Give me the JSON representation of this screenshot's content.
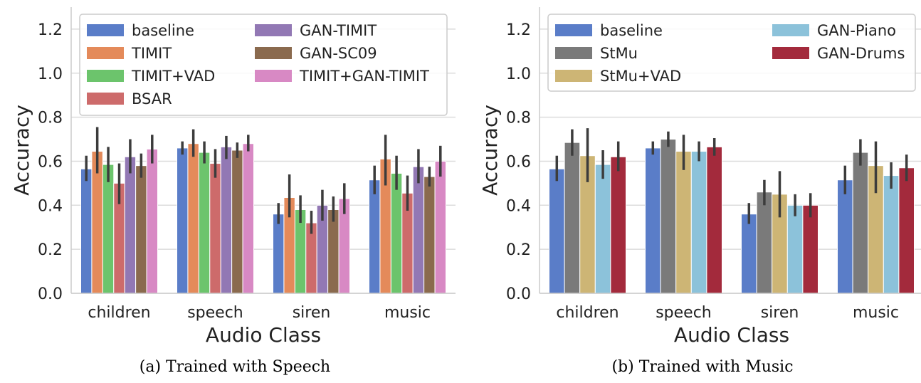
{
  "chart_data": [
    {
      "type": "bar",
      "caption": "(a) Trained with Speech",
      "xlabel": "Audio Class",
      "ylabel": "Accuracy",
      "ylim": [
        0,
        1.3
      ],
      "yticks": [
        "0.0",
        "0.2",
        "0.4",
        "0.6",
        "0.8",
        "1.0",
        "1.2"
      ],
      "grid": true,
      "legend_position": "top-left",
      "legend_columns": 2,
      "categories": [
        "children",
        "speech",
        "siren",
        "music"
      ],
      "series": [
        {
          "name": "baseline",
          "color": "#5A7DC8",
          "values": [
            0.565,
            0.66,
            0.36,
            0.515
          ],
          "err_low": [
            0.51,
            0.63,
            0.315,
            0.45
          ],
          "err_high": [
            0.625,
            0.69,
            0.41,
            0.58
          ]
        },
        {
          "name": "TIMIT",
          "color": "#E48A5A",
          "values": [
            0.645,
            0.68,
            0.435,
            0.61
          ],
          "err_low": [
            0.545,
            0.62,
            0.345,
            0.49
          ],
          "err_high": [
            0.755,
            0.745,
            0.54,
            0.72
          ]
        },
        {
          "name": "TIMIT+VAD",
          "color": "#6CC46C",
          "values": [
            0.585,
            0.64,
            0.38,
            0.545
          ],
          "err_low": [
            0.505,
            0.59,
            0.32,
            0.47
          ],
          "err_high": [
            0.665,
            0.69,
            0.445,
            0.625
          ]
        },
        {
          "name": "BSAR",
          "color": "#CD6B6B",
          "values": [
            0.5,
            0.59,
            0.32,
            0.455
          ],
          "err_low": [
            0.405,
            0.525,
            0.27,
            0.375
          ],
          "err_high": [
            0.59,
            0.655,
            0.375,
            0.535
          ]
        },
        {
          "name": "GAN-TIMIT",
          "color": "#9278B4",
          "values": [
            0.62,
            0.665,
            0.4,
            0.575
          ],
          "err_low": [
            0.545,
            0.61,
            0.33,
            0.5
          ],
          "err_high": [
            0.7,
            0.715,
            0.47,
            0.655
          ]
        },
        {
          "name": "GAN-SC09",
          "color": "#8A6A4E",
          "values": [
            0.58,
            0.65,
            0.38,
            0.53
          ],
          "err_low": [
            0.525,
            0.615,
            0.325,
            0.485
          ],
          "err_high": [
            0.635,
            0.685,
            0.44,
            0.575
          ]
        },
        {
          "name": "TIMIT+GAN-TIMIT",
          "color": "#D889C4",
          "values": [
            0.655,
            0.68,
            0.43,
            0.6
          ],
          "err_low": [
            0.59,
            0.645,
            0.36,
            0.53
          ],
          "err_high": [
            0.72,
            0.72,
            0.5,
            0.67
          ]
        }
      ]
    },
    {
      "type": "bar",
      "caption": "(b) Trained with Music",
      "xlabel": "Audio Class",
      "ylabel": "Accuracy",
      "ylim": [
        0,
        1.3
      ],
      "yticks": [
        "0.0",
        "0.2",
        "0.4",
        "0.6",
        "0.8",
        "1.0",
        "1.2"
      ],
      "grid": true,
      "legend_position": "top",
      "legend_columns": 2,
      "categories": [
        "children",
        "speech",
        "siren",
        "music"
      ],
      "series": [
        {
          "name": "baseline",
          "color": "#5A7DC8",
          "values": [
            0.565,
            0.66,
            0.36,
            0.515
          ],
          "err_low": [
            0.51,
            0.63,
            0.315,
            0.45
          ],
          "err_high": [
            0.625,
            0.69,
            0.41,
            0.58
          ]
        },
        {
          "name": "StMu",
          "color": "#7A7A7A",
          "values": [
            0.685,
            0.7,
            0.46,
            0.64
          ],
          "err_low": [
            0.625,
            0.665,
            0.4,
            0.58
          ],
          "err_high": [
            0.745,
            0.735,
            0.515,
            0.7
          ]
        },
        {
          "name": "StMu+VAD",
          "color": "#CDB575",
          "values": [
            0.625,
            0.645,
            0.45,
            0.58
          ],
          "err_low": [
            0.505,
            0.56,
            0.345,
            0.455
          ],
          "err_high": [
            0.75,
            0.72,
            0.555,
            0.69
          ]
        },
        {
          "name": "GAN-Piano",
          "color": "#8CC2DA",
          "values": [
            0.585,
            0.645,
            0.4,
            0.535
          ],
          "err_low": [
            0.52,
            0.6,
            0.35,
            0.475
          ],
          "err_high": [
            0.65,
            0.69,
            0.45,
            0.595
          ]
        },
        {
          "name": "GAN-Drums",
          "color": "#A32A3C",
          "values": [
            0.62,
            0.665,
            0.4,
            0.57
          ],
          "err_low": [
            0.555,
            0.625,
            0.345,
            0.51
          ],
          "err_high": [
            0.69,
            0.705,
            0.455,
            0.63
          ]
        }
      ]
    }
  ]
}
